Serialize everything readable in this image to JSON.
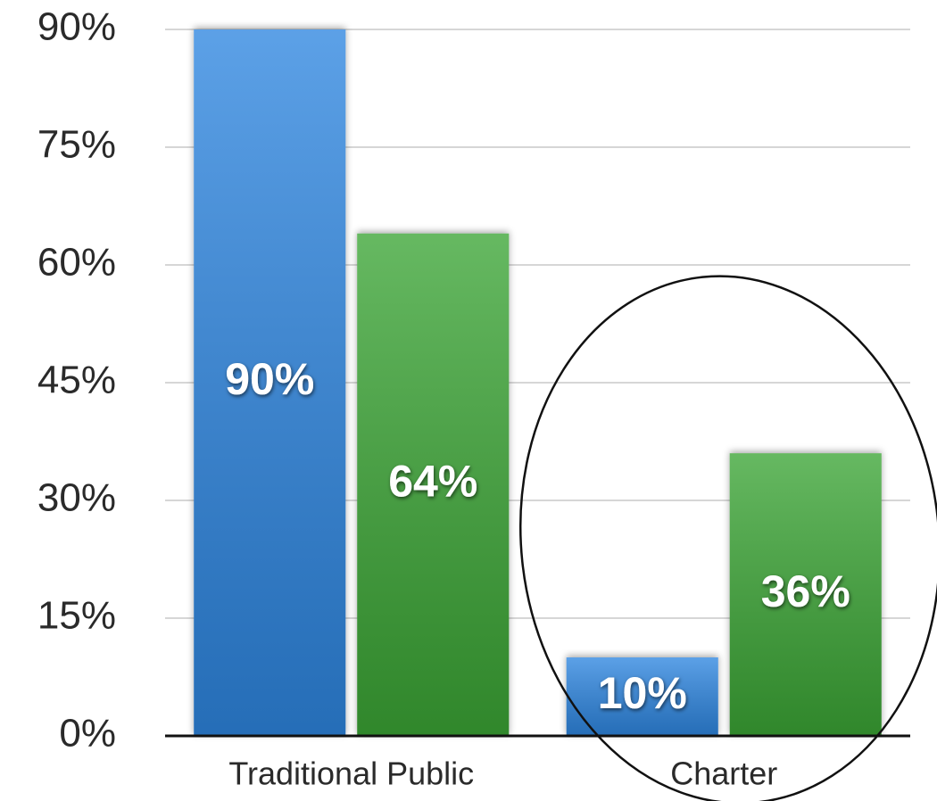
{
  "chart_data": {
    "type": "bar",
    "categories": [
      "Traditional Public",
      "Charter"
    ],
    "series": [
      {
        "color": "#2f86e0",
        "values": [
          90,
          10
        ],
        "value_labels": [
          "90%",
          "10%"
        ]
      },
      {
        "color": "#3aa535",
        "values": [
          64,
          36
        ],
        "value_labels": [
          "64%",
          "36%"
        ]
      }
    ],
    "ylim": [
      0,
      90
    ],
    "yticks": [
      {
        "value": 0,
        "label": "0%"
      },
      {
        "value": 15,
        "label": "15%"
      },
      {
        "value": 30,
        "label": "30%"
      },
      {
        "value": 45,
        "label": "45%"
      },
      {
        "value": 60,
        "label": "60%"
      },
      {
        "value": 75,
        "label": "75%"
      },
      {
        "value": 90,
        "label": "90%"
      }
    ],
    "grid": true
  }
}
